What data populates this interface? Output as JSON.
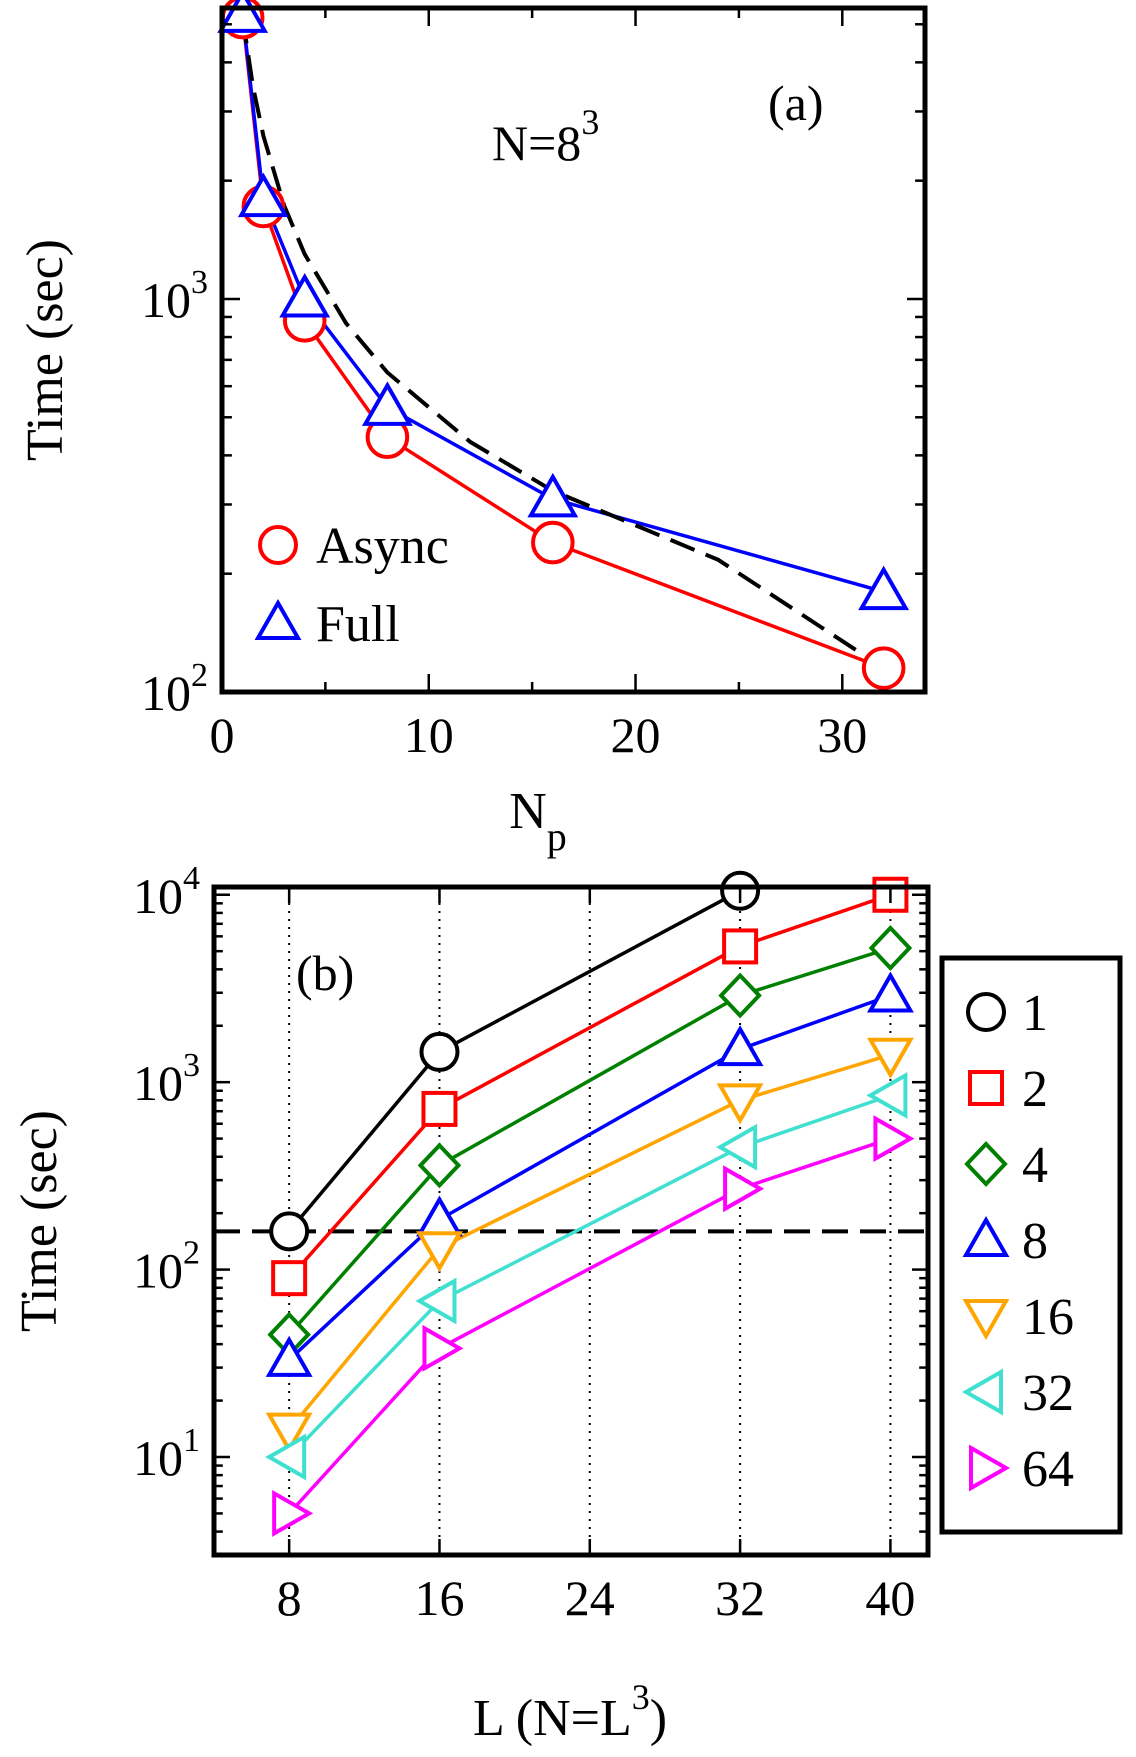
{
  "chart_data": [
    {
      "id": "a",
      "type": "line",
      "panel_label": "(a)",
      "annotation": "N=8",
      "annotation_sup": "3",
      "xlabel": "N",
      "xlabel_sub": "p",
      "ylabel": "Time (sec)",
      "xscale": "linear",
      "yscale": "log",
      "xlim": [
        0,
        34
      ],
      "ylim": [
        100,
        5500
      ],
      "xticks": [
        0,
        10,
        20,
        30
      ],
      "xtick_labels": [
        "0",
        "10",
        "20",
        "30"
      ],
      "yticks": [
        100,
        1000
      ],
      "ytick_labels": [
        {
          "base": "10",
          "exp": "2"
        },
        {
          "base": "10",
          "exp": "3"
        }
      ],
      "legend_position": "bottom-left",
      "series": [
        {
          "name": "Async",
          "marker": "circle",
          "color": "#ff0000",
          "x": [
            1,
            2,
            4,
            8,
            16,
            32
          ],
          "y": [
            5200,
            1720,
            880,
            445,
            240,
            115
          ]
        },
        {
          "name": "Full",
          "marker": "triangle-up",
          "color": "#0000ff",
          "x": [
            1,
            2,
            4,
            8,
            16,
            32
          ],
          "y": [
            5300,
            1800,
            1000,
            530,
            310,
            180
          ]
        },
        {
          "name": "",
          "style": "dashed",
          "color": "#000000",
          "x": [
            1,
            1.5,
            2,
            3,
            4,
            6,
            8,
            12,
            16,
            24,
            32
          ],
          "y": [
            5200,
            3467,
            2600,
            1733,
            1300,
            867,
            650,
            433,
            325,
            217,
            115
          ]
        }
      ]
    },
    {
      "id": "b",
      "type": "line",
      "panel_label": "(b)",
      "xlabel": "L (N=L",
      "xlabel_sup": "3",
      "xlabel_end": ")",
      "ylabel": "Time (sec)",
      "xscale": "linear",
      "yscale": "log",
      "xlim": [
        4,
        42
      ],
      "ylim": [
        3,
        11000
      ],
      "xticks": [
        8,
        16,
        24,
        32,
        40
      ],
      "xtick_labels": [
        "8",
        "16",
        "24",
        "32",
        "40"
      ],
      "yticks": [
        10,
        100,
        1000,
        10000
      ],
      "ytick_labels": [
        {
          "base": "10",
          "exp": "1"
        },
        {
          "base": "10",
          "exp": "2"
        },
        {
          "base": "10",
          "exp": "3"
        },
        {
          "base": "10",
          "exp": "4"
        }
      ],
      "vertical_gridlines_x": [
        8,
        16,
        24,
        32,
        40
      ],
      "reference_line_y": 160,
      "legend_position": "outside-right",
      "series": [
        {
          "name": "1",
          "marker": "circle",
          "color": "#000000",
          "x": [
            8,
            16,
            32
          ],
          "y": [
            160,
            1450,
            10500
          ]
        },
        {
          "name": "2",
          "marker": "square",
          "color": "#ff0000",
          "x": [
            8,
            16,
            32,
            40
          ],
          "y": [
            90,
            720,
            5300,
            10000
          ]
        },
        {
          "name": "4",
          "marker": "diamond",
          "color": "#008000",
          "x": [
            8,
            16,
            32,
            40
          ],
          "y": [
            45,
            360,
            2900,
            5200
          ]
        },
        {
          "name": "8",
          "marker": "triangle-up",
          "color": "#0000ff",
          "x": [
            8,
            16,
            32,
            40
          ],
          "y": [
            33,
            185,
            1500,
            2900
          ]
        },
        {
          "name": "16",
          "marker": "triangle-down",
          "color": "#ffa500",
          "x": [
            8,
            16,
            32,
            40
          ],
          "y": [
            14,
            130,
            800,
            1400
          ]
        },
        {
          "name": "32",
          "marker": "triangle-left",
          "color": "#40e0d0",
          "x": [
            8,
            16,
            32,
            40
          ],
          "y": [
            10,
            68,
            450,
            850
          ]
        },
        {
          "name": "64",
          "marker": "triangle-right",
          "color": "#ff00ff",
          "x": [
            8,
            16,
            32,
            40
          ],
          "y": [
            5,
            38,
            270,
            500
          ]
        }
      ]
    }
  ]
}
